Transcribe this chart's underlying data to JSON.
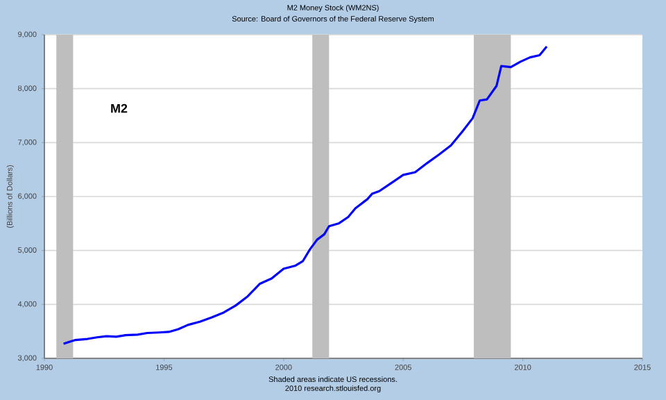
{
  "chart_data": {
    "type": "line",
    "title": "M2 Money Stock (WM2NS)",
    "subtitle": "Source: Board of Governors of the Federal Reserve System",
    "ylabel": "(Billions of Dollars)",
    "annotations": [
      "M2",
      "Shaded areas indicate US recessions.",
      "2010 research.stlouisfed.org"
    ],
    "x": [
      1990.8,
      1991.0,
      1991.3,
      1991.8,
      1992.2,
      1992.6,
      1993.0,
      1993.4,
      1993.9,
      1994.3,
      1994.8,
      1995.2,
      1995.6,
      1996.0,
      1996.5,
      1997.0,
      1997.5,
      1998.0,
      1998.5,
      1999.0,
      1999.5,
      2000.0,
      2000.5,
      2000.8,
      2001.1,
      2001.4,
      2001.7,
      2001.9,
      2002.3,
      2002.7,
      2003.0,
      2003.5,
      2003.7,
      2004.0,
      2004.5,
      2005.0,
      2005.5,
      2006.0,
      2006.5,
      2007.0,
      2007.5,
      2007.9,
      2008.2,
      2008.5,
      2008.9,
      2009.1,
      2009.5,
      2009.9,
      2010.3,
      2010.7,
      2011.0
    ],
    "series": [
      {
        "color": "#0000ff",
        "values": [
          3270,
          3300,
          3340,
          3360,
          3390,
          3410,
          3400,
          3430,
          3440,
          3470,
          3480,
          3490,
          3540,
          3620,
          3680,
          3760,
          3850,
          3980,
          4150,
          4380,
          4480,
          4660,
          4720,
          4800,
          5020,
          5200,
          5300,
          5450,
          5500,
          5620,
          5780,
          5950,
          6050,
          6100,
          6250,
          6400,
          6450,
          6620,
          6780,
          6950,
          7220,
          7450,
          7780,
          7800,
          8050,
          8420,
          8400,
          8500,
          8580,
          8620,
          8780
        ]
      }
    ],
    "xlim": [
      1990,
      2015
    ],
    "xticks": [
      1990,
      1995,
      2000,
      2005,
      2010,
      2015
    ],
    "ylim": [
      3000,
      9000
    ],
    "yticks": [
      {
        "value": 3000,
        "label": "3,000"
      },
      {
        "value": 4000,
        "label": "4,000"
      },
      {
        "value": 5000,
        "label": "5,000"
      },
      {
        "value": 6000,
        "label": "6,000"
      },
      {
        "value": 7000,
        "label": "7,000"
      },
      {
        "value": 8000,
        "label": "8,000"
      },
      {
        "value": 9000,
        "label": "9,000"
      }
    ],
    "bands": [
      {
        "axis": "x",
        "from": 1990.5,
        "to": 1991.2,
        "color": "#bebebe"
      },
      {
        "axis": "x",
        "from": 2001.2,
        "to": 2001.9,
        "color": "#bebebe"
      },
      {
        "axis": "x",
        "from": 2007.95,
        "to": 2009.5,
        "color": "#bebebe"
      }
    ],
    "grid": "y",
    "marker": "none",
    "line_style": "solid"
  }
}
